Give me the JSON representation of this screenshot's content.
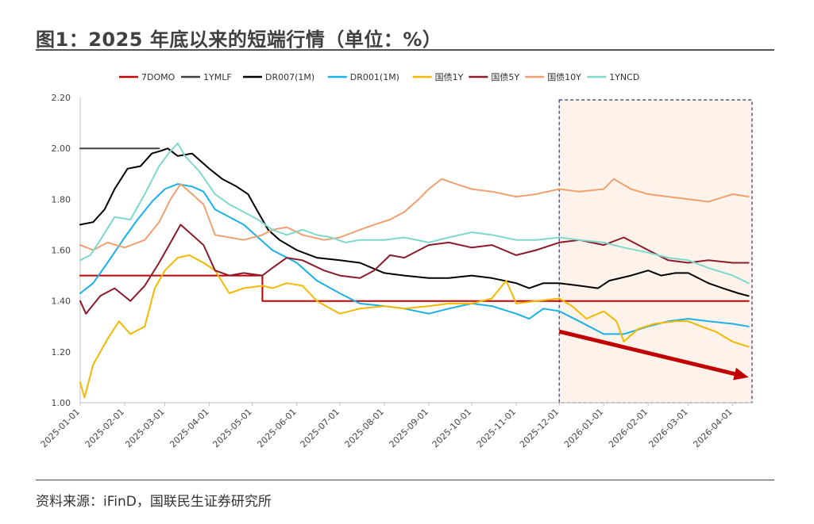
{
  "header": {
    "title": "图1：2025 年底以来的短端行情（单位：%）"
  },
  "footer": {
    "source": "资料来源：iFinD，国联民生证券研究所"
  },
  "chart_data": {
    "type": "line",
    "title": "图1：2025 年底以来的短端行情（单位：%）",
    "xlabel": "",
    "ylabel": "",
    "ylim": [
      1.0,
      2.2
    ],
    "xlim": [
      "2025-01-01",
      "2026-04-15"
    ],
    "y_ticks": [
      "1.00",
      "1.20",
      "1.40",
      "1.60",
      "1.80",
      "2.00",
      "2.20"
    ],
    "x_ticks": [
      "2025-01-01",
      "2025-02-01",
      "2025-03-01",
      "2025-04-01",
      "2025-05-01",
      "2025-06-01",
      "2025-07-01",
      "2025-08-01",
      "2025-09-01",
      "2025-10-01",
      "2025-11-01",
      "2025-12-01",
      "2026-01-01",
      "2026-02-01",
      "2026-03-01",
      "2026-04-01"
    ],
    "legend_position": "top",
    "highlight_box": {
      "from": "2025-12-01",
      "to": "2026-04-15",
      "color": "#fdf3ea",
      "border": "#2d3566"
    },
    "trend_arrow": {
      "from": [
        "2025-12-01",
        1.28
      ],
      "to": [
        "2026-04-12",
        1.1
      ],
      "color": "#c00000"
    },
    "series": [
      {
        "name": "7DOMO",
        "color": "#c00000",
        "width": 2,
        "points": [
          [
            "2025-01-01",
            1.5
          ],
          [
            "2025-05-08",
            1.5
          ],
          [
            "2025-05-08",
            1.4
          ],
          [
            "2026-04-12",
            1.4
          ]
        ]
      },
      {
        "name": "1YMLF",
        "color": "#404040",
        "width": 2,
        "points": [
          [
            "2025-01-01",
            2.0
          ],
          [
            "2025-02-25",
            2.0
          ]
        ]
      },
      {
        "name": "DR007(1M)",
        "color": "#000000",
        "width": 2,
        "points": [
          [
            "2025-01-01",
            1.7
          ],
          [
            "2025-01-10",
            1.71
          ],
          [
            "2025-01-18",
            1.76
          ],
          [
            "2025-01-25",
            1.84
          ],
          [
            "2025-02-03",
            1.92
          ],
          [
            "2025-02-12",
            1.93
          ],
          [
            "2025-02-20",
            1.98
          ],
          [
            "2025-02-26",
            1.99
          ],
          [
            "2025-03-03",
            2.0
          ],
          [
            "2025-03-10",
            1.97
          ],
          [
            "2025-03-20",
            1.98
          ],
          [
            "2025-04-01",
            1.92
          ],
          [
            "2025-04-10",
            1.88
          ],
          [
            "2025-04-20",
            1.85
          ],
          [
            "2025-04-28",
            1.82
          ],
          [
            "2025-05-05",
            1.75
          ],
          [
            "2025-05-12",
            1.68
          ],
          [
            "2025-05-20",
            1.64
          ],
          [
            "2025-06-01",
            1.6
          ],
          [
            "2025-06-15",
            1.57
          ],
          [
            "2025-07-01",
            1.56
          ],
          [
            "2025-07-15",
            1.55
          ],
          [
            "2025-08-01",
            1.51
          ],
          [
            "2025-08-15",
            1.5
          ],
          [
            "2025-09-01",
            1.49
          ],
          [
            "2025-09-15",
            1.49
          ],
          [
            "2025-10-01",
            1.5
          ],
          [
            "2025-10-15",
            1.49
          ],
          [
            "2025-11-01",
            1.47
          ],
          [
            "2025-11-10",
            1.45
          ],
          [
            "2025-11-20",
            1.47
          ],
          [
            "2025-12-01",
            1.47
          ],
          [
            "2025-12-15",
            1.46
          ],
          [
            "2025-12-28",
            1.45
          ],
          [
            "2026-01-05",
            1.48
          ],
          [
            "2026-01-20",
            1.5
          ],
          [
            "2026-02-01",
            1.52
          ],
          [
            "2026-02-10",
            1.5
          ],
          [
            "2026-02-20",
            1.51
          ],
          [
            "2026-03-01",
            1.51
          ],
          [
            "2026-03-15",
            1.47
          ],
          [
            "2026-03-25",
            1.45
          ],
          [
            "2026-04-05",
            1.43
          ],
          [
            "2026-04-12",
            1.42
          ]
        ]
      },
      {
        "name": "DR001(1M)",
        "color": "#1ab0e8",
        "width": 2,
        "points": [
          [
            "2025-01-01",
            1.43
          ],
          [
            "2025-01-10",
            1.47
          ],
          [
            "2025-01-20",
            1.55
          ],
          [
            "2025-02-01",
            1.65
          ],
          [
            "2025-02-10",
            1.72
          ],
          [
            "2025-02-20",
            1.79
          ],
          [
            "2025-03-01",
            1.84
          ],
          [
            "2025-03-10",
            1.86
          ],
          [
            "2025-03-20",
            1.85
          ],
          [
            "2025-03-28",
            1.83
          ],
          [
            "2025-04-05",
            1.76
          ],
          [
            "2025-04-15",
            1.73
          ],
          [
            "2025-04-25",
            1.7
          ],
          [
            "2025-05-05",
            1.65
          ],
          [
            "2025-05-15",
            1.6
          ],
          [
            "2025-06-01",
            1.55
          ],
          [
            "2025-06-15",
            1.48
          ],
          [
            "2025-07-01",
            1.43
          ],
          [
            "2025-07-15",
            1.39
          ],
          [
            "2025-08-01",
            1.38
          ],
          [
            "2025-08-15",
            1.37
          ],
          [
            "2025-09-01",
            1.35
          ],
          [
            "2025-09-15",
            1.37
          ],
          [
            "2025-10-01",
            1.39
          ],
          [
            "2025-10-15",
            1.38
          ],
          [
            "2025-11-01",
            1.35
          ],
          [
            "2025-11-10",
            1.33
          ],
          [
            "2025-11-20",
            1.37
          ],
          [
            "2025-12-01",
            1.36
          ],
          [
            "2025-12-15",
            1.32
          ],
          [
            "2026-01-01",
            1.27
          ],
          [
            "2026-01-15",
            1.27
          ],
          [
            "2026-02-01",
            1.3
          ],
          [
            "2026-02-15",
            1.32
          ],
          [
            "2026-03-01",
            1.33
          ],
          [
            "2026-03-15",
            1.32
          ],
          [
            "2026-04-01",
            1.31
          ],
          [
            "2026-04-12",
            1.3
          ]
        ]
      },
      {
        "name": "国债1Y",
        "color": "#f5b800",
        "width": 2,
        "points": [
          [
            "2025-01-01",
            1.08
          ],
          [
            "2025-01-04",
            1.02
          ],
          [
            "2025-01-10",
            1.15
          ],
          [
            "2025-01-20",
            1.25
          ],
          [
            "2025-01-28",
            1.32
          ],
          [
            "2025-02-05",
            1.27
          ],
          [
            "2025-02-15",
            1.3
          ],
          [
            "2025-02-22",
            1.45
          ],
          [
            "2025-03-01",
            1.52
          ],
          [
            "2025-03-10",
            1.57
          ],
          [
            "2025-03-18",
            1.58
          ],
          [
            "2025-03-28",
            1.55
          ],
          [
            "2025-04-05",
            1.52
          ],
          [
            "2025-04-15",
            1.43
          ],
          [
            "2025-04-25",
            1.45
          ],
          [
            "2025-05-08",
            1.46
          ],
          [
            "2025-05-15",
            1.45
          ],
          [
            "2025-05-25",
            1.47
          ],
          [
            "2025-06-05",
            1.46
          ],
          [
            "2025-06-15",
            1.4
          ],
          [
            "2025-07-01",
            1.35
          ],
          [
            "2025-07-15",
            1.37
          ],
          [
            "2025-08-01",
            1.38
          ],
          [
            "2025-08-15",
            1.37
          ],
          [
            "2025-09-01",
            1.38
          ],
          [
            "2025-09-15",
            1.39
          ],
          [
            "2025-10-01",
            1.39
          ],
          [
            "2025-10-15",
            1.41
          ],
          [
            "2025-10-25",
            1.48
          ],
          [
            "2025-11-01",
            1.39
          ],
          [
            "2025-11-15",
            1.4
          ],
          [
            "2025-12-01",
            1.41
          ],
          [
            "2025-12-10",
            1.38
          ],
          [
            "2025-12-20",
            1.33
          ],
          [
            "2026-01-01",
            1.36
          ],
          [
            "2026-01-10",
            1.32
          ],
          [
            "2026-01-15",
            1.24
          ],
          [
            "2026-01-25",
            1.29
          ],
          [
            "2026-02-05",
            1.31
          ],
          [
            "2026-02-20",
            1.32
          ],
          [
            "2026-03-01",
            1.32
          ],
          [
            "2026-03-10",
            1.3
          ],
          [
            "2026-03-20",
            1.28
          ],
          [
            "2026-04-01",
            1.24
          ],
          [
            "2026-04-12",
            1.22
          ]
        ]
      },
      {
        "name": "国债5Y",
        "color": "#8b1a2b",
        "width": 2,
        "points": [
          [
            "2025-01-01",
            1.4
          ],
          [
            "2025-01-05",
            1.35
          ],
          [
            "2025-01-15",
            1.42
          ],
          [
            "2025-01-25",
            1.45
          ],
          [
            "2025-02-05",
            1.4
          ],
          [
            "2025-02-15",
            1.46
          ],
          [
            "2025-02-25",
            1.55
          ],
          [
            "2025-03-05",
            1.63
          ],
          [
            "2025-03-12",
            1.7
          ],
          [
            "2025-03-20",
            1.66
          ],
          [
            "2025-03-28",
            1.62
          ],
          [
            "2025-04-05",
            1.52
          ],
          [
            "2025-04-15",
            1.5
          ],
          [
            "2025-04-25",
            1.51
          ],
          [
            "2025-05-08",
            1.5
          ],
          [
            "2025-05-15",
            1.53
          ],
          [
            "2025-05-25",
            1.57
          ],
          [
            "2025-06-05",
            1.56
          ],
          [
            "2025-06-20",
            1.52
          ],
          [
            "2025-07-01",
            1.5
          ],
          [
            "2025-07-15",
            1.49
          ],
          [
            "2025-07-25",
            1.52
          ],
          [
            "2025-08-05",
            1.58
          ],
          [
            "2025-08-15",
            1.57
          ],
          [
            "2025-09-01",
            1.62
          ],
          [
            "2025-09-15",
            1.63
          ],
          [
            "2025-10-01",
            1.61
          ],
          [
            "2025-10-15",
            1.62
          ],
          [
            "2025-11-01",
            1.58
          ],
          [
            "2025-11-15",
            1.6
          ],
          [
            "2025-12-01",
            1.63
          ],
          [
            "2025-12-15",
            1.64
          ],
          [
            "2026-01-01",
            1.62
          ],
          [
            "2026-01-15",
            1.65
          ],
          [
            "2026-02-01",
            1.6
          ],
          [
            "2026-02-15",
            1.56
          ],
          [
            "2026-03-01",
            1.55
          ],
          [
            "2026-03-15",
            1.56
          ],
          [
            "2026-04-01",
            1.55
          ],
          [
            "2026-04-12",
            1.55
          ]
        ]
      },
      {
        "name": "国债10Y",
        "color": "#f0a070",
        "width": 2,
        "points": [
          [
            "2025-01-01",
            1.62
          ],
          [
            "2025-01-10",
            1.6
          ],
          [
            "2025-01-20",
            1.63
          ],
          [
            "2025-02-01",
            1.61
          ],
          [
            "2025-02-15",
            1.64
          ],
          [
            "2025-02-25",
            1.71
          ],
          [
            "2025-03-05",
            1.8
          ],
          [
            "2025-03-12",
            1.86
          ],
          [
            "2025-03-20",
            1.82
          ],
          [
            "2025-03-28",
            1.78
          ],
          [
            "2025-04-05",
            1.66
          ],
          [
            "2025-04-15",
            1.65
          ],
          [
            "2025-04-25",
            1.64
          ],
          [
            "2025-05-08",
            1.66
          ],
          [
            "2025-05-15",
            1.68
          ],
          [
            "2025-05-25",
            1.69
          ],
          [
            "2025-06-05",
            1.66
          ],
          [
            "2025-06-20",
            1.64
          ],
          [
            "2025-07-01",
            1.65
          ],
          [
            "2025-07-15",
            1.68
          ],
          [
            "2025-07-25",
            1.7
          ],
          [
            "2025-08-05",
            1.72
          ],
          [
            "2025-08-15",
            1.75
          ],
          [
            "2025-08-25",
            1.8
          ],
          [
            "2025-09-01",
            1.84
          ],
          [
            "2025-09-10",
            1.88
          ],
          [
            "2025-09-20",
            1.86
          ],
          [
            "2025-10-01",
            1.84
          ],
          [
            "2025-10-15",
            1.83
          ],
          [
            "2025-11-01",
            1.81
          ],
          [
            "2025-11-15",
            1.82
          ],
          [
            "2025-12-01",
            1.84
          ],
          [
            "2025-12-15",
            1.83
          ],
          [
            "2026-01-01",
            1.84
          ],
          [
            "2026-01-08",
            1.88
          ],
          [
            "2026-01-20",
            1.84
          ],
          [
            "2026-02-01",
            1.82
          ],
          [
            "2026-02-15",
            1.81
          ],
          [
            "2026-03-01",
            1.8
          ],
          [
            "2026-03-15",
            1.79
          ],
          [
            "2026-04-01",
            1.82
          ],
          [
            "2026-04-12",
            1.81
          ]
        ]
      },
      {
        "name": "1YNCD",
        "color": "#7fd8cc",
        "width": 2,
        "points": [
          [
            "2025-01-01",
            1.56
          ],
          [
            "2025-01-08",
            1.58
          ],
          [
            "2025-01-15",
            1.64
          ],
          [
            "2025-01-25",
            1.73
          ],
          [
            "2025-02-05",
            1.72
          ],
          [
            "2025-02-15",
            1.82
          ],
          [
            "2025-02-25",
            1.93
          ],
          [
            "2025-03-05",
            1.99
          ],
          [
            "2025-03-10",
            2.02
          ],
          [
            "2025-03-15",
            1.97
          ],
          [
            "2025-03-25",
            1.91
          ],
          [
            "2025-04-05",
            1.82
          ],
          [
            "2025-04-15",
            1.78
          ],
          [
            "2025-04-25",
            1.75
          ],
          [
            "2025-05-05",
            1.72
          ],
          [
            "2025-05-15",
            1.68
          ],
          [
            "2025-05-25",
            1.66
          ],
          [
            "2025-06-05",
            1.68
          ],
          [
            "2025-06-15",
            1.66
          ],
          [
            "2025-06-25",
            1.65
          ],
          [
            "2025-07-05",
            1.63
          ],
          [
            "2025-07-15",
            1.64
          ],
          [
            "2025-08-01",
            1.64
          ],
          [
            "2025-08-15",
            1.65
          ],
          [
            "2025-09-01",
            1.63
          ],
          [
            "2025-09-15",
            1.65
          ],
          [
            "2025-10-01",
            1.67
          ],
          [
            "2025-10-15",
            1.66
          ],
          [
            "2025-11-01",
            1.64
          ],
          [
            "2025-11-15",
            1.64
          ],
          [
            "2025-12-01",
            1.65
          ],
          [
            "2025-12-15",
            1.64
          ],
          [
            "2026-01-01",
            1.63
          ],
          [
            "2026-01-15",
            1.61
          ],
          [
            "2026-02-01",
            1.59
          ],
          [
            "2026-02-15",
            1.57
          ],
          [
            "2026-03-01",
            1.56
          ],
          [
            "2026-03-15",
            1.53
          ],
          [
            "2026-04-01",
            1.5
          ],
          [
            "2026-04-12",
            1.47
          ]
        ]
      }
    ]
  }
}
